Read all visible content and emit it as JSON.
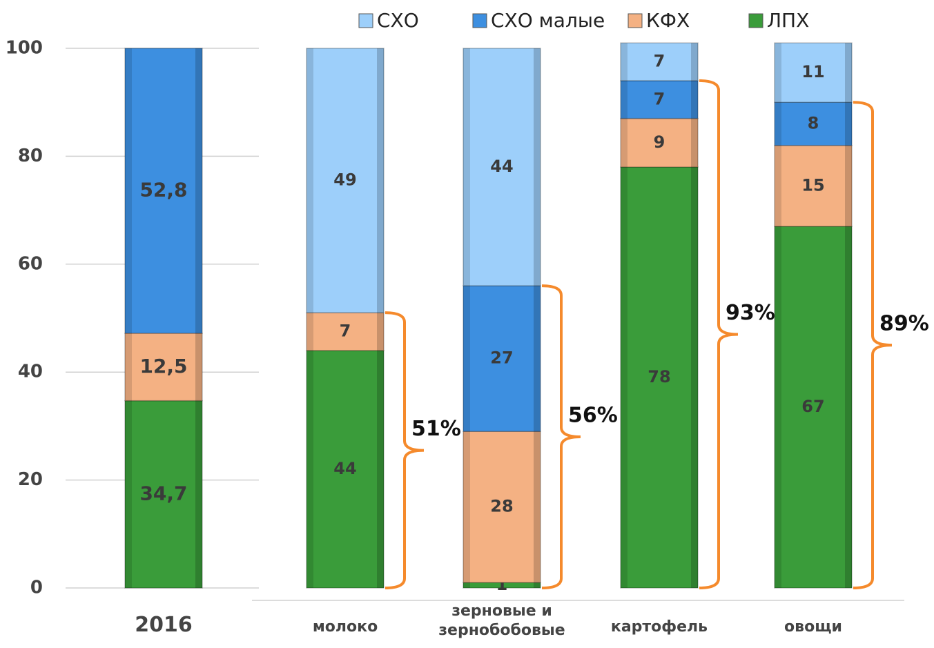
{
  "chart_data": {
    "type": "bar",
    "stacked": true,
    "categories": [
      "2016",
      "молоко",
      "зерновые и зернобобовые",
      "картофель",
      "овощи"
    ],
    "series": [
      {
        "name": "ЛПХ",
        "color": "#3a9c3a",
        "values": [
          34.7,
          44,
          1,
          78,
          67
        ],
        "value_labels": [
          "34,7",
          "44",
          "1",
          "78",
          "67"
        ]
      },
      {
        "name": "КФХ",
        "color": "#f4b183",
        "values": [
          12.5,
          7,
          28,
          9,
          15
        ],
        "value_labels": [
          "12,5",
          "7",
          "28",
          "9",
          "15"
        ]
      },
      {
        "name": "СХО малые",
        "color": "#3d8fe0",
        "values": [
          52.8,
          null,
          27,
          7,
          8
        ],
        "value_labels": [
          "52,8",
          null,
          "27",
          "7",
          "8"
        ]
      },
      {
        "name": "СХО",
        "color": "#9dcffa",
        "values": [
          null,
          49,
          44,
          7,
          11
        ]
      }
    ],
    "annotations": [
      "51%",
      "56%",
      "93%",
      "89%"
    ],
    "ylim": [
      0,
      100
    ],
    "yticks": [
      0,
      20,
      40,
      60,
      80,
      100
    ],
    "grid": true
  }
}
